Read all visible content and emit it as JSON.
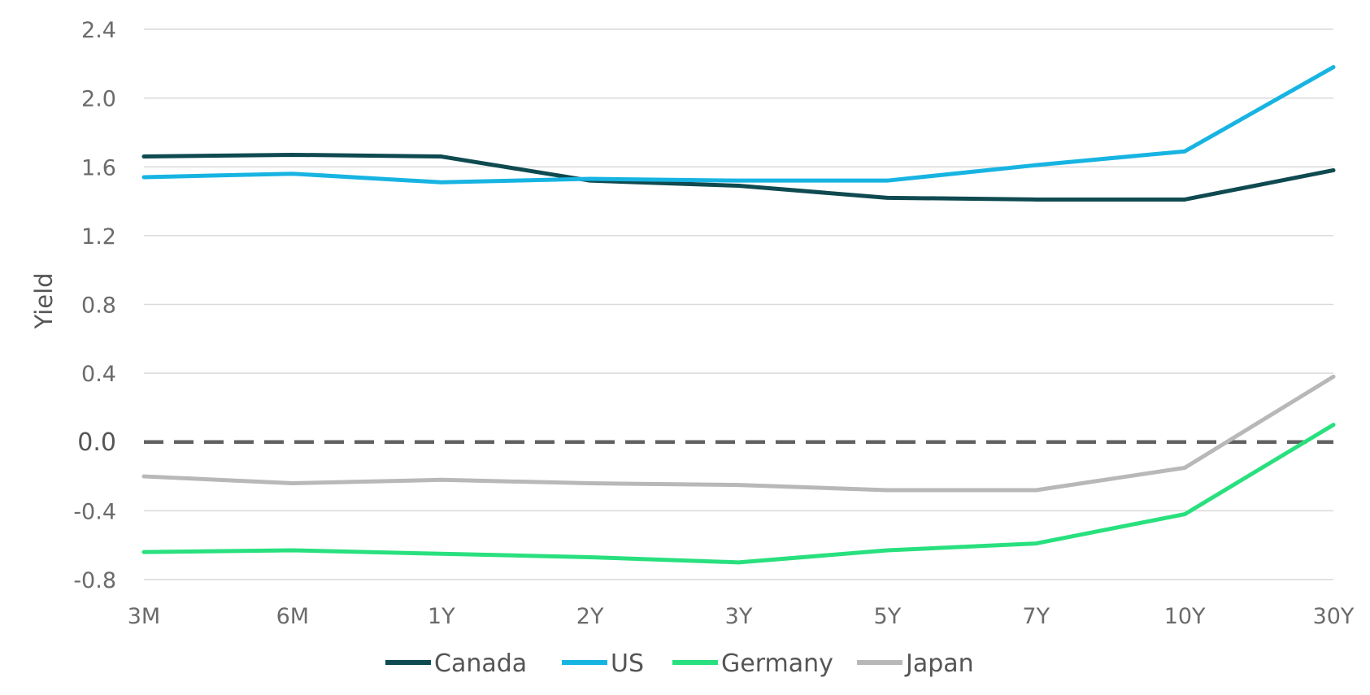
{
  "chart_data": {
    "type": "line",
    "title": "",
    "xlabel": "",
    "ylabel": "Yield",
    "categories": [
      "3M",
      "6M",
      "1Y",
      "2Y",
      "3Y",
      "5Y",
      "7Y",
      "10Y",
      "30Y"
    ],
    "yticks": [
      "2.4",
      "2.0",
      "1.6",
      "1.2",
      "0.8",
      "0.4",
      "0.0",
      "-0.4",
      "-0.8"
    ],
    "ylim": [
      -0.8,
      2.4
    ],
    "grid": true,
    "zero_line": "dashed",
    "legend_position": "bottom-center",
    "series": [
      {
        "name": "Canada",
        "color": "#0f4a50",
        "values": [
          1.66,
          1.67,
          1.66,
          1.52,
          1.49,
          1.42,
          1.41,
          1.41,
          1.58
        ]
      },
      {
        "name": "US",
        "color": "#17b4e2",
        "values": [
          1.54,
          1.56,
          1.51,
          1.53,
          1.52,
          1.52,
          1.61,
          1.69,
          2.18
        ]
      },
      {
        "name": "Germany",
        "color": "#28e07e",
        "values": [
          -0.64,
          -0.63,
          -0.65,
          -0.67,
          -0.7,
          -0.63,
          -0.59,
          -0.42,
          0.1
        ]
      },
      {
        "name": "Japan",
        "color": "#b8b8b8",
        "values": [
          -0.2,
          -0.24,
          -0.22,
          -0.24,
          -0.25,
          -0.28,
          -0.28,
          -0.15,
          0.38
        ]
      }
    ]
  }
}
